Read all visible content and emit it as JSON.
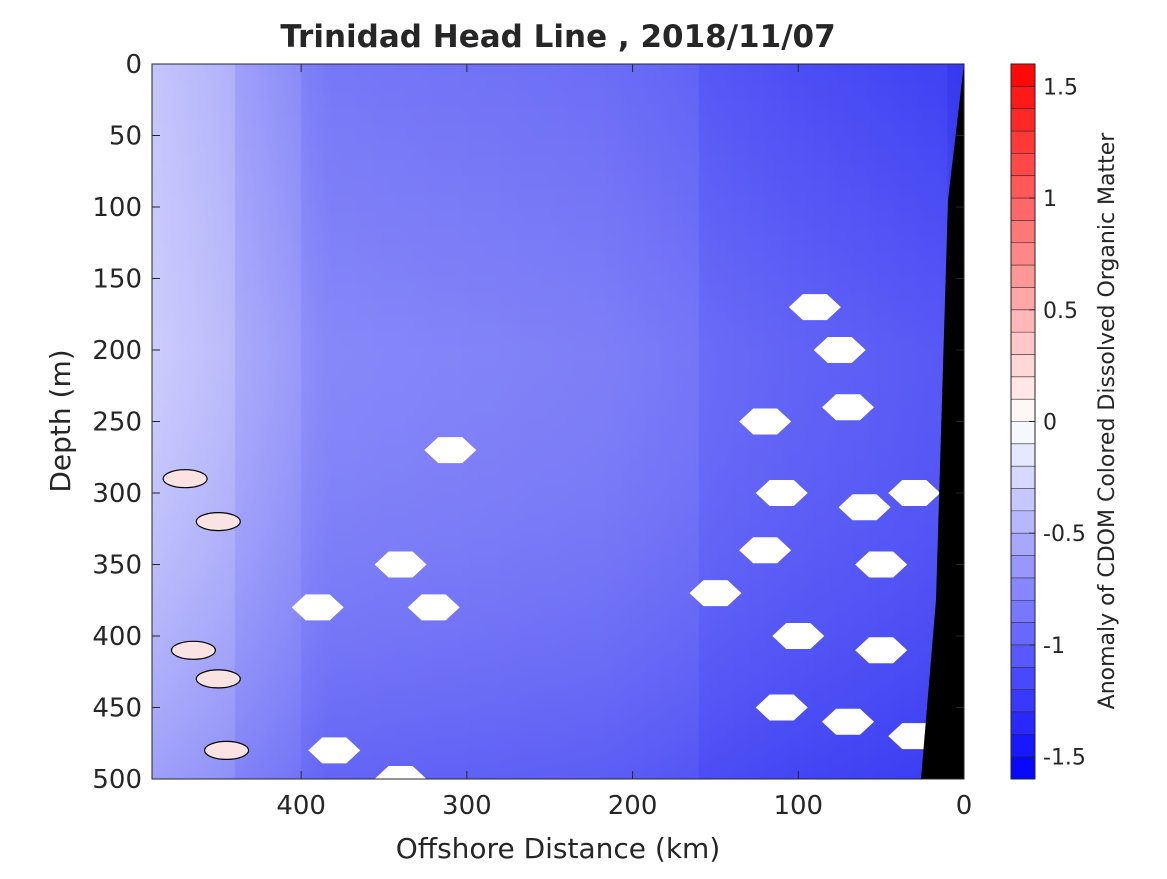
{
  "chart_data": {
    "type": "heatmap",
    "title": "Trinidad Head Line , 2018/11/07",
    "xlabel": "Offshore Distance (km)",
    "ylabel": "Depth (m)",
    "xlim": [
      490,
      0
    ],
    "ylim": [
      500,
      0
    ],
    "x_ticks": [
      400,
      300,
      200,
      100,
      0
    ],
    "y_ticks": [
      0,
      50,
      100,
      150,
      200,
      250,
      300,
      350,
      400,
      450,
      500
    ],
    "colorbar": {
      "label": "Anomaly of CDOM Colored Dissolved Organic Matter",
      "range": [
        -1.6,
        1.6
      ],
      "ticks": [
        1.5,
        1,
        0.5,
        0,
        -0.5,
        -1,
        -1.5
      ],
      "tick_labels": [
        "1.5",
        "1",
        "0.5",
        "0",
        "-0.5",
        "-1",
        "-1.5"
      ],
      "low_color": "#0000ff",
      "mid_color": "#ffffff",
      "high_color": "#ff0000",
      "levels": 32
    },
    "grid": false,
    "bathymetry_color": "#000000",
    "zones": [
      {
        "x_range": [
          490,
          440
        ],
        "depth_range": [
          0,
          500
        ],
        "anomaly": -0.4
      },
      {
        "x_range": [
          440,
          400
        ],
        "depth_range": [
          0,
          500
        ],
        "anomaly": -0.7
      },
      {
        "x_range": [
          400,
          160
        ],
        "depth_range": [
          0,
          500
        ],
        "anomaly": -0.9
      },
      {
        "x_range": [
          160,
          10
        ],
        "depth_range": [
          0,
          500
        ],
        "anomaly": -1.1
      }
    ],
    "positive_patches_km_depth": [
      [
        470,
        290
      ],
      [
        450,
        320
      ],
      [
        465,
        410
      ],
      [
        450,
        430
      ],
      [
        445,
        480
      ]
    ],
    "missing_data_patches_km_depth": [
      [
        90,
        170
      ],
      [
        75,
        200
      ],
      [
        120,
        250
      ],
      [
        70,
        240
      ],
      [
        310,
        270
      ],
      [
        340,
        350
      ],
      [
        110,
        300
      ],
      [
        60,
        310
      ],
      [
        30,
        300
      ],
      [
        120,
        340
      ],
      [
        50,
        350
      ],
      [
        150,
        370
      ],
      [
        320,
        380
      ],
      [
        390,
        380
      ],
      [
        100,
        400
      ],
      [
        50,
        410
      ],
      [
        110,
        450
      ],
      [
        70,
        460
      ],
      [
        380,
        480
      ],
      [
        340,
        500
      ],
      [
        30,
        470
      ]
    ]
  }
}
